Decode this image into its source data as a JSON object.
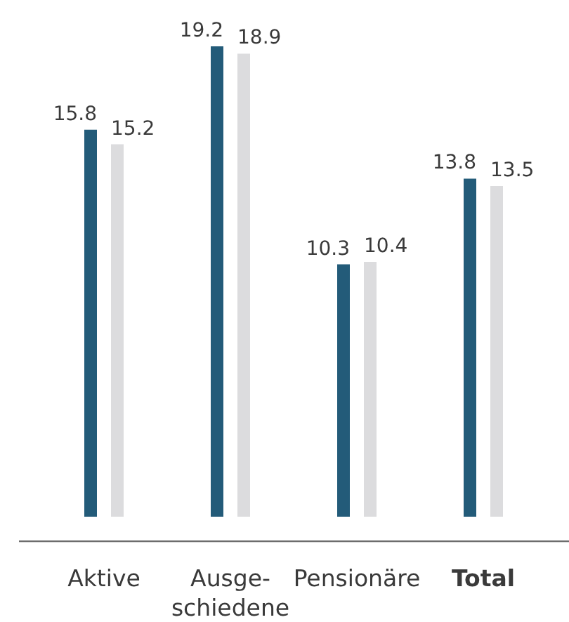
{
  "chart_data": {
    "type": "bar",
    "categories": [
      "Aktive",
      "Ausge-\nschiedene",
      "Pensionäre",
      "Total"
    ],
    "series": [
      {
        "color": "#235b79",
        "values": [
          15.8,
          19.2,
          10.3,
          13.8
        ]
      },
      {
        "color": "#dcdcde",
        "values": [
          15.2,
          18.9,
          10.4,
          13.5
        ]
      }
    ],
    "data_labels": true
  }
}
